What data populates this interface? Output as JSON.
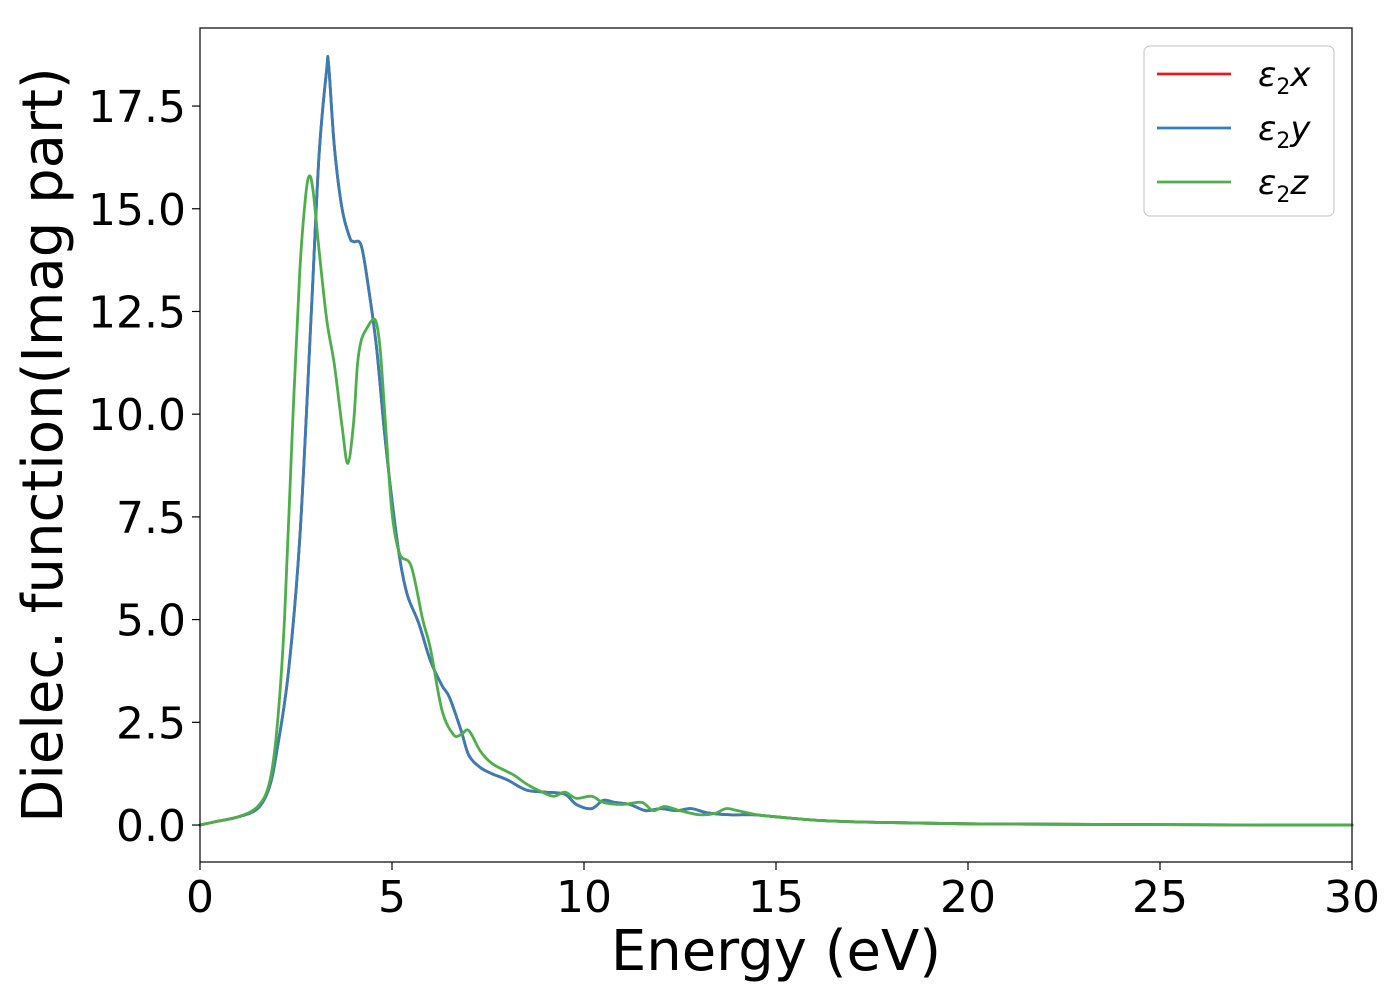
{
  "chart_data": {
    "type": "line",
    "title": "",
    "xlabel": "Energy (eV)",
    "ylabel": "Dielec. function(Imag part)",
    "xlim": [
      0,
      30
    ],
    "ylim": [
      -0.9,
      19.4
    ],
    "xticks": [
      0,
      5,
      10,
      15,
      20,
      25,
      30
    ],
    "xtick_labels": [
      "0",
      "5",
      "10",
      "15",
      "20",
      "25",
      "30"
    ],
    "yticks": [
      0,
      2.5,
      5,
      7.5,
      10,
      12.5,
      15,
      17.5
    ],
    "ytick_labels": [
      "0.0",
      "2.5",
      "5.0",
      "7.5",
      "10.0",
      "12.5",
      "15.0",
      "17.5"
    ],
    "grid": false,
    "legend_position": "top-right",
    "series": [
      {
        "name_main": "ε",
        "name_sub": "2",
        "name_suffix": "x",
        "color": "#e41a1c",
        "x": [
          0,
          0.5,
          1.0,
          1.5,
          1.8,
          2.0,
          2.3,
          2.6,
          2.9,
          3.1,
          3.3,
          3.35,
          3.5,
          3.7,
          3.9,
          4.0,
          4.2,
          4.4,
          4.6,
          4.8,
          5.0,
          5.2,
          5.4,
          5.7,
          6.0,
          6.3,
          6.5,
          6.8,
          7.0,
          7.3,
          7.6,
          8.0,
          8.5,
          9.0,
          9.5,
          9.8,
          10.2,
          10.5,
          10.8,
          11.2,
          11.6,
          12.0,
          12.4,
          12.8,
          13.2,
          13.8,
          14.4,
          15.0,
          16.0,
          17.0,
          18.0,
          20.0,
          22.0,
          25.0,
          28.0,
          30.0
        ],
        "y": [
          0.0,
          0.1,
          0.2,
          0.4,
          0.9,
          1.8,
          3.7,
          7.0,
          12.5,
          16.3,
          18.4,
          18.5,
          16.5,
          15.0,
          14.3,
          14.2,
          14.1,
          13.0,
          11.6,
          9.6,
          7.9,
          6.5,
          5.6,
          4.9,
          4.0,
          3.4,
          3.1,
          2.3,
          1.7,
          1.4,
          1.25,
          1.1,
          0.85,
          0.8,
          0.75,
          0.5,
          0.4,
          0.6,
          0.55,
          0.5,
          0.35,
          0.4,
          0.35,
          0.4,
          0.3,
          0.25,
          0.25,
          0.2,
          0.12,
          0.08,
          0.06,
          0.03,
          0.02,
          0.01,
          0.0,
          0.0
        ]
      },
      {
        "name_main": "ε",
        "name_sub": "2",
        "name_suffix": "y",
        "color": "#377eb8",
        "x": [
          0,
          0.5,
          1.0,
          1.5,
          1.8,
          2.0,
          2.3,
          2.6,
          2.9,
          3.1,
          3.3,
          3.35,
          3.5,
          3.7,
          3.9,
          4.0,
          4.2,
          4.4,
          4.6,
          4.8,
          5.0,
          5.2,
          5.4,
          5.7,
          6.0,
          6.3,
          6.5,
          6.8,
          7.0,
          7.3,
          7.6,
          8.0,
          8.5,
          9.0,
          9.5,
          9.8,
          10.2,
          10.5,
          10.8,
          11.2,
          11.6,
          12.0,
          12.4,
          12.8,
          13.2,
          13.8,
          14.4,
          15.0,
          16.0,
          17.0,
          18.0,
          20.0,
          22.0,
          25.0,
          28.0,
          30.0
        ],
        "y": [
          0.0,
          0.1,
          0.2,
          0.4,
          0.9,
          1.8,
          3.7,
          7.0,
          12.5,
          16.3,
          18.4,
          18.5,
          16.5,
          15.0,
          14.3,
          14.2,
          14.1,
          13.0,
          11.6,
          9.6,
          7.9,
          6.5,
          5.6,
          4.9,
          4.0,
          3.4,
          3.1,
          2.3,
          1.7,
          1.4,
          1.25,
          1.1,
          0.85,
          0.8,
          0.75,
          0.5,
          0.4,
          0.6,
          0.55,
          0.5,
          0.35,
          0.4,
          0.35,
          0.4,
          0.3,
          0.25,
          0.25,
          0.2,
          0.12,
          0.08,
          0.06,
          0.03,
          0.02,
          0.01,
          0.0,
          0.0
        ]
      },
      {
        "name_main": "ε",
        "name_sub": "2",
        "name_suffix": "z",
        "color": "#4daf4a",
        "x": [
          0,
          0.5,
          1.0,
          1.5,
          1.8,
          2.0,
          2.2,
          2.4,
          2.6,
          2.75,
          2.85,
          2.95,
          3.1,
          3.3,
          3.5,
          3.7,
          3.85,
          4.0,
          4.1,
          4.2,
          4.35,
          4.5,
          4.6,
          4.7,
          4.85,
          5.0,
          5.2,
          5.5,
          5.8,
          6.0,
          6.3,
          6.6,
          6.8,
          7.0,
          7.3,
          7.6,
          8.0,
          8.2,
          8.5,
          8.8,
          9.2,
          9.5,
          9.8,
          10.2,
          10.5,
          11.0,
          11.5,
          11.8,
          12.1,
          12.5,
          13.0,
          13.4,
          13.7,
          14.0,
          14.5,
          15.0,
          16.0,
          17.0,
          18.0,
          20.0,
          22.0,
          25.0,
          28.0,
          30.0
        ],
        "y": [
          0.0,
          0.1,
          0.2,
          0.45,
          1.0,
          2.3,
          5.0,
          9.5,
          13.5,
          15.3,
          15.8,
          15.4,
          14.0,
          12.3,
          11.2,
          9.7,
          8.8,
          9.8,
          11.2,
          11.8,
          12.1,
          12.3,
          12.2,
          11.5,
          9.5,
          7.6,
          6.6,
          6.3,
          5.0,
          4.3,
          2.8,
          2.2,
          2.2,
          2.3,
          1.8,
          1.5,
          1.3,
          1.2,
          1.0,
          0.85,
          0.7,
          0.8,
          0.65,
          0.7,
          0.55,
          0.5,
          0.55,
          0.35,
          0.45,
          0.35,
          0.25,
          0.28,
          0.4,
          0.35,
          0.25,
          0.2,
          0.12,
          0.08,
          0.06,
          0.03,
          0.02,
          0.01,
          0.0,
          0.0
        ]
      }
    ]
  }
}
